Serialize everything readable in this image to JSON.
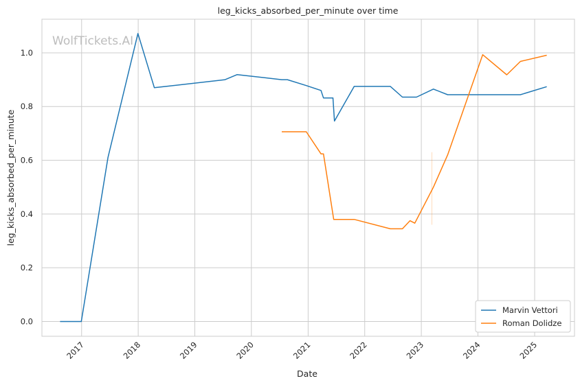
{
  "chart_data": {
    "type": "line",
    "title": "leg_kicks_absorbed_per_minute over time",
    "xlabel": "Date",
    "ylabel": "leg_kicks_absorbed_per_minute",
    "watermark": "WolfTickets.AI",
    "xlim": [
      "2016-04-20",
      "2025-09-15"
    ],
    "ylim": [
      -0.055,
      1.125
    ],
    "x_ticks": [
      "2017",
      "2018",
      "2019",
      "2020",
      "2021",
      "2022",
      "2023",
      "2024",
      "2025"
    ],
    "y_ticks": [
      "0.0",
      "0.2",
      "0.4",
      "0.6",
      "0.8",
      "1.0"
    ],
    "grid": true,
    "legend_position": "bottom-right",
    "series": [
      {
        "name": "Marvin Vettori",
        "color": "#1f77b4",
        "points": [
          [
            "2016-08-15",
            0.0
          ],
          [
            "2016-12-30",
            0.0
          ],
          [
            "2017-06-20",
            0.61
          ],
          [
            "2017-12-30",
            1.072
          ],
          [
            "2018-04-15",
            0.87
          ],
          [
            "2019-07-15",
            0.9
          ],
          [
            "2019-10-01",
            0.919
          ],
          [
            "2020-07-15",
            0.9
          ],
          [
            "2020-08-20",
            0.9
          ],
          [
            "2020-12-20",
            0.878
          ],
          [
            "2021-03-25",
            0.86
          ],
          [
            "2021-04-10",
            0.832
          ],
          [
            "2021-06-10",
            0.832
          ],
          [
            "2021-06-20",
            0.746
          ],
          [
            "2021-10-25",
            0.875
          ],
          [
            "2022-06-15",
            0.875
          ],
          [
            "2022-09-01",
            0.835
          ],
          [
            "2022-12-01",
            0.835
          ],
          [
            "2023-03-20",
            0.865
          ],
          [
            "2023-06-20",
            0.844
          ],
          [
            "2024-10-01",
            0.844
          ],
          [
            "2025-03-20",
            0.874
          ]
        ]
      },
      {
        "name": "Roman Dolidze",
        "color": "#ff7f0e",
        "points": [
          [
            "2020-07-15",
            0.706
          ],
          [
            "2020-12-20",
            0.706
          ],
          [
            "2021-03-25",
            0.624
          ],
          [
            "2021-04-10",
            0.624
          ],
          [
            "2021-06-15",
            0.38
          ],
          [
            "2021-10-25",
            0.38
          ],
          [
            "2022-06-15",
            0.345
          ],
          [
            "2022-09-01",
            0.345
          ],
          [
            "2022-10-20",
            0.375
          ],
          [
            "2022-11-20",
            0.366
          ],
          [
            "2023-03-20",
            0.5
          ],
          [
            "2023-06-20",
            0.62
          ],
          [
            "2024-02-01",
            0.993
          ],
          [
            "2024-07-05",
            0.918
          ],
          [
            "2024-10-01",
            0.968
          ],
          [
            "2025-03-20",
            0.991
          ]
        ]
      }
    ]
  }
}
